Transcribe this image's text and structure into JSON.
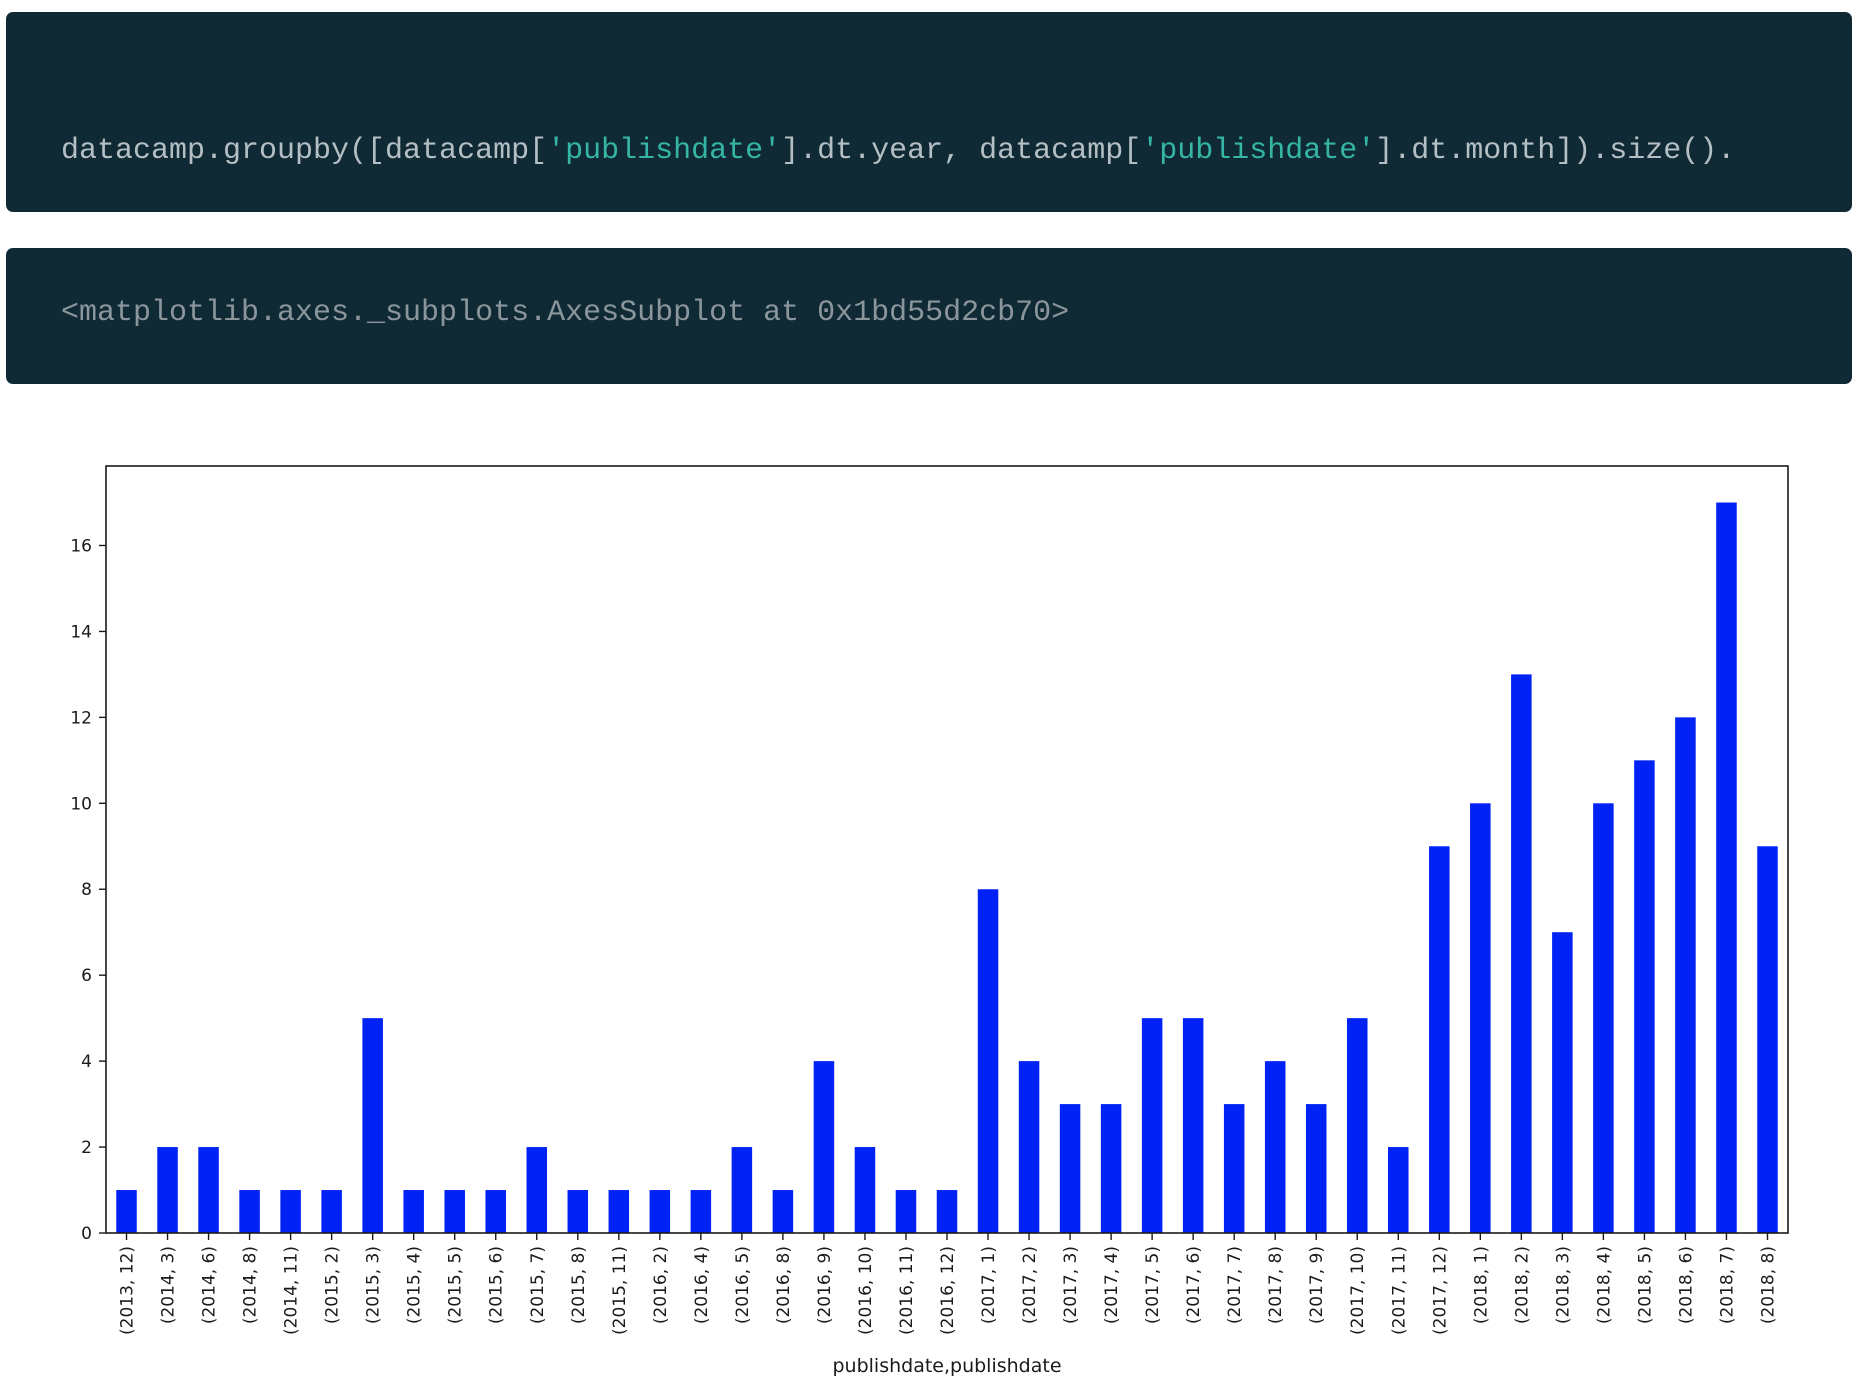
{
  "code_input": {
    "parts": [
      {
        "text": "datacamp.groupby([datacamp[",
        "kind": "plain"
      },
      {
        "text": "'publishdate'",
        "kind": "string"
      },
      {
        "text": "].dt.year, datacamp[",
        "kind": "plain"
      },
      {
        "text": "'publishdate'",
        "kind": "string"
      },
      {
        "text": "].dt.month]).size().",
        "kind": "plain"
      }
    ]
  },
  "code_output": {
    "text": "<matplotlib.axes._subplots.AxesSubplot at 0x1bd55d2cb70>"
  },
  "colors": {
    "bar": "#0022f5",
    "code_bg": "#102a35",
    "code_text": "#b4bfc3",
    "code_string": "#35b6a5"
  },
  "chart_data": {
    "type": "bar",
    "xlabel": "publishdate,publishdate",
    "ylabel": "",
    "ylim": [
      0,
      17.85
    ],
    "yticks": [
      0,
      2,
      4,
      6,
      8,
      10,
      12,
      14,
      16
    ],
    "grid": false,
    "categories": [
      "(2013, 12)",
      "(2014, 3)",
      "(2014, 6)",
      "(2014, 8)",
      "(2014, 11)",
      "(2015, 2)",
      "(2015, 3)",
      "(2015, 4)",
      "(2015, 5)",
      "(2015, 6)",
      "(2015, 7)",
      "(2015, 8)",
      "(2015, 11)",
      "(2016, 2)",
      "(2016, 4)",
      "(2016, 5)",
      "(2016, 8)",
      "(2016, 9)",
      "(2016, 10)",
      "(2016, 11)",
      "(2016, 12)",
      "(2017, 1)",
      "(2017, 2)",
      "(2017, 3)",
      "(2017, 4)",
      "(2017, 5)",
      "(2017, 6)",
      "(2017, 7)",
      "(2017, 8)",
      "(2017, 9)",
      "(2017, 10)",
      "(2017, 11)",
      "(2017, 12)",
      "(2018, 1)",
      "(2018, 2)",
      "(2018, 3)",
      "(2018, 4)",
      "(2018, 5)",
      "(2018, 6)",
      "(2018, 7)",
      "(2018, 8)"
    ],
    "values": [
      1,
      2,
      2,
      1,
      1,
      1,
      5,
      1,
      1,
      1,
      2,
      1,
      1,
      1,
      1,
      2,
      1,
      4,
      2,
      1,
      1,
      8,
      4,
      3,
      3,
      5,
      5,
      3,
      4,
      3,
      5,
      2,
      9,
      10,
      13,
      7,
      10,
      11,
      12,
      17,
      9
    ]
  }
}
